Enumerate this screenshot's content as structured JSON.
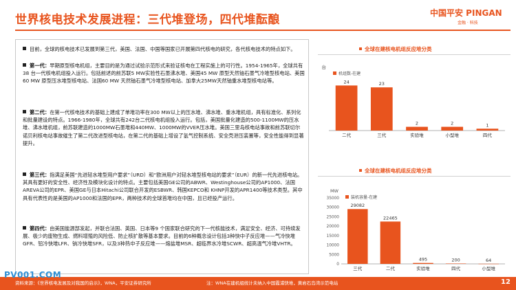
{
  "header": {
    "title": "世界核电技术发展进程：三代堆登场，四代堆酝酿",
    "logo_text": "中国平安 PINGAN",
    "logo_sub": "金融 · 科技"
  },
  "body": {
    "paragraphs": [
      {
        "lead": "",
        "text": "目前，全球的核电技术已发展到第三代，美国、法国、中国等国家已开展第四代核电的研究，各代核电技术的特点如下。"
      },
      {
        "lead": "第一代：",
        "text": "早期原型核电机组，主要目的是为通过试验示范形式来验证核电在工程实施上的可行性。1954-1965年，全球共有38 台一代核电机组投入运行。包括前述的前苏联5 MW实验性石墨沸水堆、美国45 MW 原型天然铀石墨气冷堆型核电站、美国60 MW 原型压水堆型核电站、法国60 MW 天然铀石墨气冷堆型核电站、加拿大25MW天然铀重水堆型核电站等。"
      },
      {
        "lead": "第二代：",
        "text": "在第一代核电技术的基础上建成了单堆功率在300 MW以上的压水堆、沸水堆、重水堆机组，具有标准化、系列化和批量建设的特点。1966-1980年，全球共有242台二代核电机组投入运行。包括，美国批量化建造的500-1100MW的压水堆、沸水堆机组，前苏联建造的1000MW石墨堆和440MW、1000MW的VVER压水堆。美国三里岛核电站事故和前苏联切尔诺贝利核电站事故催生了第二代改进型核电站，在第二代的基础上增设了氢气控制系统、安全壳泄压装置等，安全性能得到显著提升。"
      },
      {
        "lead": "第三代：",
        "text": "指满足美国“先进轻水堆型用户要求”（URD）和“欧洲用户对轻水堆型核电站的要求”（EUR）的新一代先进核电站。其具有更好的安全性、经济性及模块化设计的特点。主要包括美国GE公司的ABWR、Westinghouse公司的AP1000、法国AREVA公司的EPR、美国GE与日本Hitachi公司联合开发的ESBWR、韩国KEPCO和 KHNP开发的APR1400等技术类型。其中具有代表性的是美国的AP1000和法国的EPR，两种技术的全球首堆均在中国，且已经投产运行。"
      },
      {
        "lead": "第四代：",
        "text": "由美国能源部发起，并联合法国、英国、日本等9 个国家联合研究的下一代核能技术，满足安全、经济、可持续发展、极少的废物生成、燃料增殖的风险低、防止核扩散等基本要求。目前的6种概念设计包括3种快中子反应堆——气冷快堆GFR、铅冷快堆LFR、钠冷快堆SFR，以及3种热中子反应堆——熔盐堆MSR、超临界水冷堆SCWR、超高温气冷堆VHTR。"
      }
    ]
  },
  "charts": {
    "units_title": "全球在建核电机组反应堆分类",
    "capacity_title": "全球在建核电机组反应堆分类"
  },
  "chart_data": [
    {
      "type": "bar",
      "title": "全球在建核电机组反应堆分类",
      "ylabel": "台",
      "legend": "机组数-在建",
      "legend_position": "top-left",
      "categories": [
        "二代",
        "三代",
        "实验堆",
        "小型堆",
        "四代"
      ],
      "values": [
        24,
        23,
        2,
        2,
        1
      ],
      "ylim": [
        0,
        30
      ],
      "grid": false,
      "bar_color": "#e8541e"
    },
    {
      "type": "bar",
      "title": "全球在建核电机组反应堆分类",
      "ylabel": "MW",
      "legend": "装机容量-在建",
      "legend_position": "top-left",
      "categories": [
        "三代",
        "二代",
        "实验堆",
        "四代",
        "小型堆"
      ],
      "values": [
        29082,
        22465,
        495,
        200,
        64
      ],
      "yticks": [
        "0",
        "5000",
        "10000",
        "15000",
        "20000",
        "25000",
        "30000",
        "35000"
      ],
      "ylim": [
        0,
        35000
      ],
      "grid": false,
      "bar_color": "#e8541e"
    }
  ],
  "footer": {
    "source": "资料来源：《世界核电发展及对我国的启示》，WNA，平安证券研究所",
    "note": "注：WNA在建机组统计未纳入中国霞浦快堆，黄岩石岛湾示范电站",
    "page": "12"
  },
  "watermark": "PV001.COM"
}
